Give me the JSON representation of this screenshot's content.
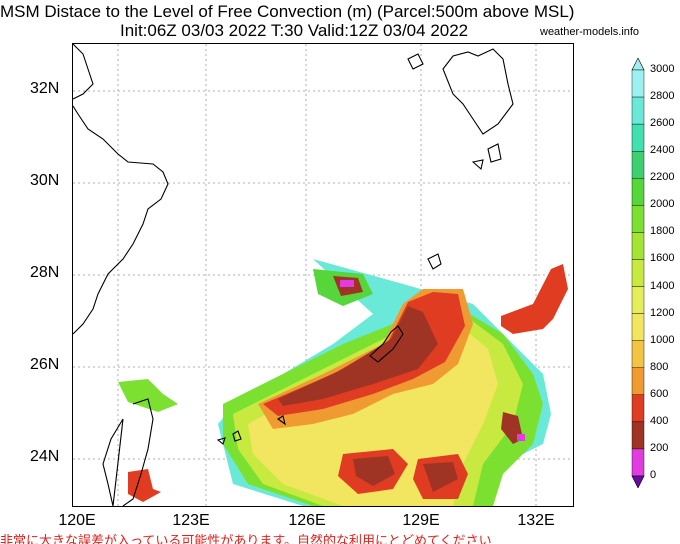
{
  "header": {
    "title": "MSM Distace to the Level of Free Convection (m) (Parcel:500m above MSL)",
    "subtitle": "Init:06Z 03/03 2022  T:30 Valid:12Z 03/04 2022",
    "credit": "weather-models.info"
  },
  "map": {
    "lat_labels": [
      "32N",
      "30N",
      "28N",
      "26N",
      "24N"
    ],
    "lon_labels": [
      "120E",
      "123E",
      "126E",
      "129E",
      "132E"
    ]
  },
  "colorbar": {
    "labels": [
      "3000",
      "2800",
      "2600",
      "2400",
      "2200",
      "2000",
      "1800",
      "1600",
      "1400",
      "1200",
      "1000",
      "800",
      "600",
      "400",
      "200",
      "0"
    ],
    "colors": [
      "#9ef0f0",
      "#6ae8d8",
      "#40e0b0",
      "#3ed070",
      "#56d63a",
      "#7ce030",
      "#a4e434",
      "#c8ea40",
      "#e4ee5a",
      "#f2e660",
      "#f2c442",
      "#f09a32",
      "#e03c22",
      "#a03424",
      "#e03ce0",
      "#6a0aa0"
    ]
  },
  "footer": {
    "note": "非常に大きな誤差が入っている可能性があります。自然的な利用にとどめてください"
  }
}
